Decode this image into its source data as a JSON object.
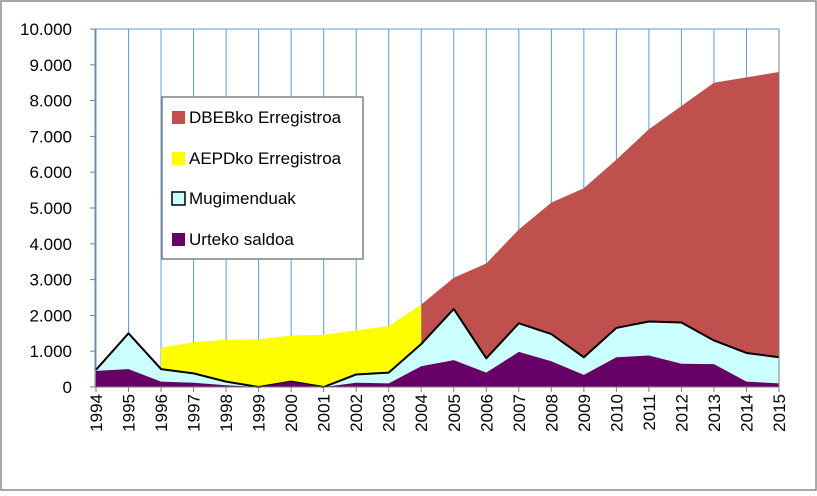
{
  "chart_data": {
    "type": "area",
    "title": "",
    "xlabel": "",
    "ylabel": "",
    "ylim": [
      0,
      10000
    ],
    "yticks": [
      "0",
      "1.000",
      "2.000",
      "3.000",
      "4.000",
      "5.000",
      "6.000",
      "7.000",
      "8.000",
      "9.000",
      "10.000"
    ],
    "grid": "vertical",
    "legend_position": "upper-left inside plot",
    "categories": [
      "1994",
      "1995",
      "1996",
      "1997",
      "1998",
      "1999",
      "2000",
      "2001",
      "2002",
      "2003",
      "2004",
      "2005",
      "2006",
      "2007",
      "2008",
      "2009",
      "2010",
      "2011",
      "2012",
      "2013",
      "2014",
      "2015"
    ],
    "series": [
      {
        "name": "DBEBko Erregistroa",
        "kind": "area",
        "color": "#c0504d",
        "values": [
          null,
          null,
          null,
          null,
          null,
          null,
          null,
          null,
          null,
          null,
          2300,
          3050,
          3450,
          4400,
          5150,
          5550,
          6350,
          7200,
          7850,
          8500,
          8650,
          8800
        ]
      },
      {
        "name": "AEPDko Erregistroa",
        "kind": "area",
        "color": "#ffff00",
        "values": [
          null,
          null,
          1100,
          1250,
          1320,
          1330,
          1440,
          1460,
          1580,
          1700,
          2300,
          null,
          null,
          null,
          null,
          null,
          null,
          null,
          null,
          null,
          null,
          null
        ]
      },
      {
        "name": "Mugimenduak",
        "kind": "area-outlined",
        "color": "#ccffff",
        "outline": "#000000",
        "values": [
          480,
          1500,
          500,
          380,
          150,
          0,
          150,
          0,
          350,
          400,
          1200,
          2180,
          800,
          1780,
          1480,
          830,
          1650,
          1830,
          1800,
          1300,
          950,
          830
        ]
      },
      {
        "name": "Urteko saldoa",
        "kind": "area",
        "color": "#660066",
        "values": [
          450,
          500,
          150,
          120,
          50,
          0,
          150,
          0,
          120,
          100,
          580,
          750,
          400,
          980,
          720,
          340,
          830,
          880,
          650,
          640,
          150,
          100
        ]
      }
    ]
  }
}
